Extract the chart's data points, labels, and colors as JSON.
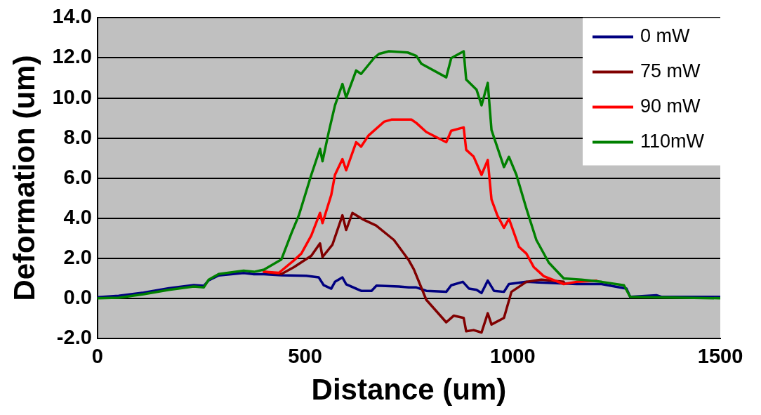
{
  "chart_data": {
    "type": "line",
    "xlabel": "Distance (um)",
    "ylabel": "Deformation (um)",
    "xlim": [
      0,
      1500
    ],
    "xticks": [
      0,
      500,
      1000,
      1500
    ],
    "ylim": [
      -2,
      14
    ],
    "yticks": [
      {
        "value": -2,
        "label": "-2.0"
      },
      {
        "value": 0,
        "label": "0.0"
      },
      {
        "value": 2,
        "label": "2.0"
      },
      {
        "value": 4,
        "label": "4.0"
      },
      {
        "value": 6,
        "label": "6.0"
      },
      {
        "value": 8,
        "label": "8.0"
      },
      {
        "value": 10,
        "label": "10.0"
      },
      {
        "value": 12,
        "label": "12.0"
      },
      {
        "value": 14,
        "label": "14.0"
      }
    ],
    "grid": "y",
    "legend": "top right",
    "marker": "none",
    "line_style": "solid",
    "series": [
      {
        "name": "0 mW",
        "color": "#000080",
        "x": [
          0,
          51,
          111,
          172,
          232,
          256,
          268,
          292,
          352,
          377,
          401,
          443,
          503,
          533,
          545,
          563,
          572,
          590,
          599,
          635,
          660,
          672,
          726,
          750,
          768,
          792,
          840,
          852,
          880,
          895,
          913,
          925,
          940,
          955,
          979,
          991,
          1033,
          1154,
          1214,
          1274,
          1283,
          1346,
          1358,
          1500
        ],
        "values": [
          0.05,
          0.12,
          0.28,
          0.5,
          0.66,
          0.62,
          0.9,
          1.14,
          1.26,
          1.2,
          1.2,
          1.15,
          1.12,
          1.04,
          0.65,
          0.48,
          0.82,
          1.04,
          0.7,
          0.37,
          0.37,
          0.63,
          0.59,
          0.54,
          0.54,
          0.37,
          0.32,
          0.65,
          0.82,
          0.48,
          0.42,
          0.26,
          0.88,
          0.37,
          0.32,
          0.71,
          0.82,
          0.71,
          0.71,
          0.48,
          0.07,
          0.15,
          0.07,
          0.07
        ]
      },
      {
        "name": "75 mW",
        "color": "#800000",
        "x": [
          401,
          443,
          473,
          515,
          536,
          542,
          566,
          590,
          599,
          614,
          641,
          671,
          714,
          750,
          762,
          792,
          840,
          858,
          882,
          888,
          906,
          925,
          940,
          949,
          979,
          997,
          1033,
          1069,
          1123
        ],
        "values": [
          1.32,
          1.21,
          1.55,
          2.12,
          2.74,
          2.06,
          2.68,
          4.14,
          3.41,
          4.26,
          3.92,
          3.63,
          2.91,
          1.89,
          1.44,
          -0.08,
          -1.2,
          -0.87,
          -0.98,
          -1.65,
          -1.59,
          -1.71,
          -0.75,
          -1.31,
          -0.98,
          0.32,
          0.82,
          0.93,
          0.82
        ]
      },
      {
        "name": "90 mW",
        "color": "#ff0000",
        "x": [
          401,
          437,
          473,
          491,
          515,
          536,
          542,
          563,
          572,
          590,
          599,
          623,
          635,
          653,
          690,
          708,
          756,
          768,
          792,
          840,
          852,
          882,
          888,
          906,
          925,
          940,
          949,
          963,
          979,
          991,
          1015,
          1033,
          1051,
          1075,
          1123,
          1154,
          1202
        ],
        "values": [
          1.32,
          1.27,
          1.89,
          2.23,
          3.13,
          4.26,
          3.75,
          5.15,
          6.16,
          6.95,
          6.39,
          7.79,
          7.57,
          8.13,
          8.81,
          8.92,
          8.92,
          8.75,
          8.3,
          7.79,
          8.36,
          8.53,
          7.41,
          7.07,
          6.16,
          6.9,
          4.93,
          4.14,
          3.52,
          3.97,
          2.57,
          2.23,
          1.55,
          1.1,
          0.71,
          0.82,
          0.88
        ]
      },
      {
        "name": "110mW",
        "color": "#008000",
        "x": [
          0,
          51,
          111,
          172,
          232,
          256,
          268,
          292,
          352,
          377,
          401,
          443,
          467,
          485,
          515,
          536,
          542,
          557,
          572,
          590,
          599,
          623,
          635,
          666,
          678,
          702,
          747,
          768,
          780,
          840,
          852,
          882,
          888,
          913,
          925,
          940,
          949,
          979,
          991,
          1009,
          1033,
          1057,
          1087,
          1123,
          1165,
          1214,
          1268,
          1283,
          1500
        ],
        "values": [
          0,
          0.03,
          0.2,
          0.42,
          0.59,
          0.54,
          0.93,
          1.21,
          1.38,
          1.32,
          1.43,
          1.94,
          3.24,
          4.14,
          6.16,
          7.46,
          6.84,
          8.3,
          9.63,
          10.7,
          10.02,
          11.37,
          11.2,
          11.99,
          12.2,
          12.33,
          12.27,
          12.1,
          11.71,
          11.03,
          11.99,
          12.33,
          10.92,
          10.41,
          9.63,
          10.75,
          8.4,
          6.55,
          7.06,
          6.16,
          4.48,
          2.91,
          1.78,
          0.99,
          0.93,
          0.82,
          0.65,
          0.07,
          0
        ]
      }
    ]
  }
}
